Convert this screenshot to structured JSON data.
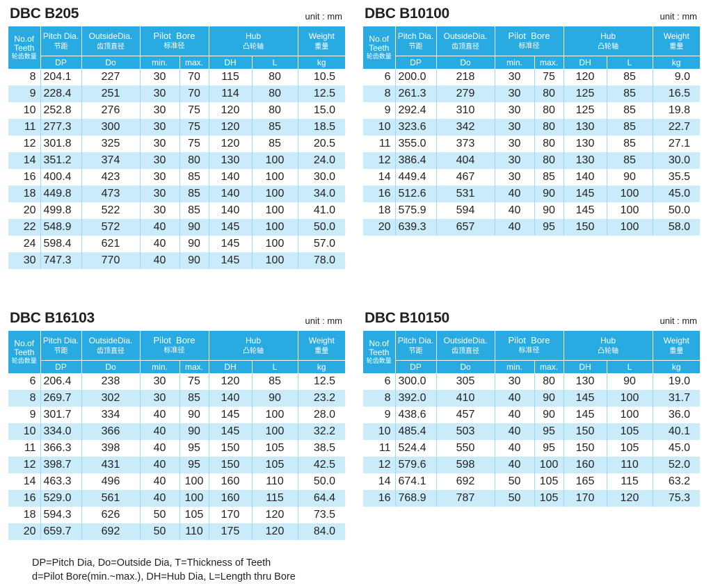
{
  "headers": {
    "teeth_en": [
      "No.of",
      "Teeth"
    ],
    "teeth_cn": "轮齿数量",
    "pitch_en": "Pitch Dia.",
    "pitch_cn": "节距",
    "outside_en": "OutsideDia.",
    "outside_cn": "齿顶直径",
    "pilot_en": "Pilot  Bore",
    "pilot_cn": "标准径",
    "hub_en": "Hub",
    "hub_cn": "凸轮轴",
    "weight_en": "Weight",
    "weight_cn": "重量",
    "sub": [
      "DP",
      "Do",
      "min.",
      "max.",
      "DH",
      "L",
      "kg"
    ]
  },
  "tables": [
    {
      "title": "DBC B205",
      "unit": "unit : mm",
      "rows": [
        [
          "8",
          "204.1",
          "227",
          "30",
          "70",
          "115",
          "80",
          "10.5"
        ],
        [
          "9",
          "228.4",
          "251",
          "30",
          "70",
          "114",
          "80",
          "12.5"
        ],
        [
          "10",
          "252.8",
          "276",
          "30",
          "75",
          "120",
          "80",
          "15.0"
        ],
        [
          "11",
          "277.3",
          "300",
          "30",
          "75",
          "120",
          "85",
          "18.5"
        ],
        [
          "12",
          "301.8",
          "325",
          "30",
          "75",
          "120",
          "85",
          "20.5"
        ],
        [
          "14",
          "351.2",
          "374",
          "30",
          "80",
          "130",
          "100",
          "24.0"
        ],
        [
          "16",
          "400.4",
          "423",
          "30",
          "85",
          "140",
          "100",
          "30.0"
        ],
        [
          "18",
          "449.8",
          "473",
          "30",
          "85",
          "140",
          "100",
          "34.0"
        ],
        [
          "20",
          "499.8",
          "522",
          "30",
          "85",
          "140",
          "100",
          "41.0"
        ],
        [
          "22",
          "548.9",
          "572",
          "40",
          "90",
          "145",
          "100",
          "50.0"
        ],
        [
          "24",
          "598.4",
          "621",
          "40",
          "90",
          "145",
          "100",
          "57.0"
        ],
        [
          "30",
          "747.3",
          "770",
          "40",
          "90",
          "145",
          "100",
          "78.0"
        ]
      ]
    },
    {
      "title": "DBC B10100",
      "unit": "unit : mm",
      "rows": [
        [
          "6",
          "200.0",
          "218",
          "30",
          "75",
          "120",
          "85",
          "9.0"
        ],
        [
          "8",
          "261.3",
          "279",
          "30",
          "80",
          "125",
          "85",
          "16.5"
        ],
        [
          "9",
          "292.4",
          "310",
          "30",
          "80",
          "125",
          "85",
          "19.8"
        ],
        [
          "10",
          "323.6",
          "342",
          "30",
          "80",
          "130",
          "85",
          "22.7"
        ],
        [
          "11",
          "355.0",
          "373",
          "30",
          "80",
          "130",
          "85",
          "27.1"
        ],
        [
          "12",
          "386.4",
          "404",
          "30",
          "80",
          "130",
          "85",
          "30.0"
        ],
        [
          "14",
          "449.4",
          "467",
          "30",
          "85",
          "140",
          "90",
          "35.5"
        ],
        [
          "16",
          "512.6",
          "531",
          "40",
          "90",
          "145",
          "100",
          "45.0"
        ],
        [
          "18",
          "575.9",
          "594",
          "40",
          "90",
          "145",
          "100",
          "50.0"
        ],
        [
          "20",
          "639.3",
          "657",
          "40",
          "95",
          "150",
          "100",
          "58.0"
        ]
      ]
    },
    {
      "title": "DBC B16103",
      "unit": "unit : mm",
      "rows": [
        [
          "6",
          "206.4",
          "238",
          "30",
          "75",
          "120",
          "85",
          "12.5"
        ],
        [
          "8",
          "269.7",
          "302",
          "30",
          "85",
          "140",
          "90",
          "23.2"
        ],
        [
          "9",
          "301.7",
          "334",
          "40",
          "90",
          "145",
          "100",
          "28.0"
        ],
        [
          "10",
          "334.0",
          "366",
          "40",
          "90",
          "145",
          "100",
          "32.2"
        ],
        [
          "11",
          "366.3",
          "398",
          "40",
          "95",
          "150",
          "105",
          "38.5"
        ],
        [
          "12",
          "398.7",
          "431",
          "40",
          "95",
          "150",
          "105",
          "42.5"
        ],
        [
          "14",
          "463.3",
          "496",
          "40",
          "100",
          "160",
          "110",
          "50.0"
        ],
        [
          "16",
          "529.0",
          "561",
          "40",
          "100",
          "160",
          "115",
          "64.4"
        ],
        [
          "18",
          "594.3",
          "626",
          "50",
          "105",
          "170",
          "120",
          "73.5"
        ],
        [
          "20",
          "659.7",
          "692",
          "50",
          "110",
          "175",
          "120",
          "84.0"
        ]
      ]
    },
    {
      "title": "DBC B10150",
      "unit": "unit : mm",
      "rows": [
        [
          "6",
          "300.0",
          "305",
          "30",
          "80",
          "130",
          "90",
          "19.0"
        ],
        [
          "8",
          "392.0",
          "410",
          "40",
          "90",
          "145",
          "100",
          "31.7"
        ],
        [
          "9",
          "438.6",
          "457",
          "40",
          "90",
          "145",
          "100",
          "36.0"
        ],
        [
          "10",
          "485.4",
          "503",
          "40",
          "95",
          "150",
          "105",
          "40.1"
        ],
        [
          "11",
          "524.4",
          "550",
          "40",
          "95",
          "150",
          "105",
          "45.0"
        ],
        [
          "12",
          "579.6",
          "598",
          "40",
          "100",
          "160",
          "110",
          "52.0"
        ],
        [
          "14",
          "674.1",
          "692",
          "50",
          "105",
          "165",
          "115",
          "63.2"
        ],
        [
          "16",
          "768.9",
          "787",
          "50",
          "105",
          "170",
          "120",
          "75.3"
        ]
      ]
    }
  ],
  "notes": [
    "DP=Pitch Dia, Do=Outside Dia, T=Thickness of Teeth",
    "d=Pilot Bore(min.~max.), DH=Hub Dia, L=Length thru Bore"
  ]
}
